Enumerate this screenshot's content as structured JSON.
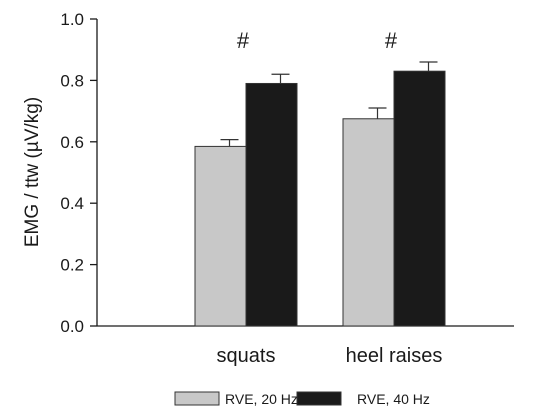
{
  "chart_data": {
    "type": "bar",
    "categories": [
      "squats",
      "heel raises"
    ],
    "series": [
      {
        "name": "RVE, 20 Hz",
        "values": [
          0.585,
          0.675
        ],
        "errors": [
          0.022,
          0.035
        ],
        "color": "#c8c8c8"
      },
      {
        "name": "RVE, 40 Hz",
        "values": [
          0.79,
          0.83
        ],
        "errors": [
          0.03,
          0.03
        ],
        "color": "#1a1a1a"
      }
    ],
    "ylabel": "EMG / ttw (µV/kg)",
    "xlabel": "",
    "ylim": [
      0,
      1.0
    ],
    "yticks": [
      "0.0",
      "0.2",
      "0.4",
      "0.6",
      "0.8",
      "1.0"
    ],
    "annotations": [
      "#",
      "#"
    ],
    "grid": false,
    "legend_position": "bottom"
  }
}
